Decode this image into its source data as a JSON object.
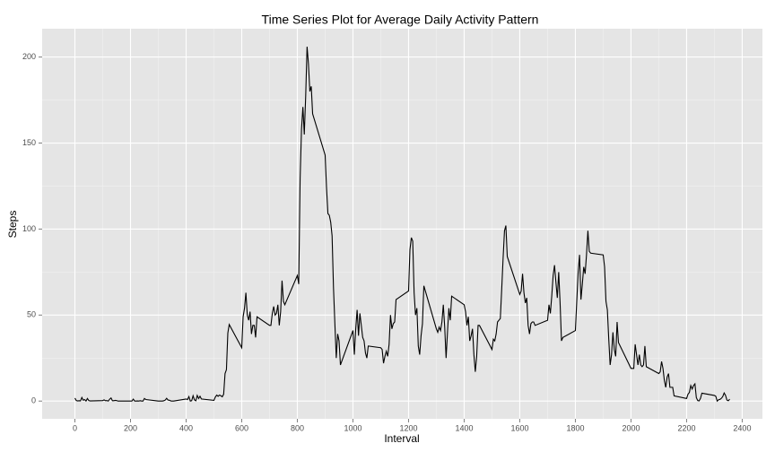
{
  "chart_data": {
    "type": "line",
    "title": "Time Series Plot for Average Daily Activity Pattern",
    "x_label": "Interval",
    "y_label": "Steps",
    "color": "#000000",
    "grid": true,
    "xlim": [
      -117.75,
      2472.75
    ],
    "ylim": [
      -10.31,
      216.48
    ],
    "xticks": [
      0,
      200,
      400,
      600,
      800,
      1000,
      1200,
      1400,
      1600,
      1800,
      2000,
      2200,
      2400
    ],
    "yticks": [
      0,
      50,
      100,
      150,
      200
    ],
    "x": [
      0,
      5,
      10,
      15,
      20,
      25,
      30,
      35,
      40,
      45,
      50,
      55,
      100,
      105,
      110,
      115,
      120,
      125,
      130,
      135,
      140,
      145,
      150,
      155,
      200,
      205,
      210,
      215,
      220,
      225,
      230,
      235,
      240,
      245,
      250,
      255,
      300,
      305,
      310,
      315,
      320,
      325,
      330,
      335,
      340,
      345,
      350,
      355,
      400,
      405,
      410,
      415,
      420,
      425,
      430,
      435,
      440,
      445,
      450,
      455,
      500,
      505,
      510,
      515,
      520,
      525,
      530,
      535,
      540,
      545,
      550,
      555,
      600,
      605,
      610,
      615,
      620,
      625,
      630,
      635,
      640,
      645,
      650,
      655,
      700,
      705,
      710,
      715,
      720,
      725,
      730,
      735,
      740,
      745,
      750,
      755,
      800,
      805,
      810,
      815,
      820,
      825,
      830,
      835,
      840,
      845,
      850,
      855,
      900,
      905,
      910,
      915,
      920,
      925,
      930,
      935,
      940,
      945,
      950,
      955,
      1000,
      1005,
      1010,
      1015,
      1020,
      1025,
      1030,
      1035,
      1040,
      1045,
      1050,
      1055,
      1100,
      1105,
      1110,
      1115,
      1120,
      1125,
      1130,
      1135,
      1140,
      1145,
      1150,
      1155,
      1200,
      1205,
      1210,
      1215,
      1220,
      1225,
      1230,
      1235,
      1240,
      1245,
      1250,
      1255,
      1300,
      1305,
      1310,
      1315,
      1320,
      1325,
      1330,
      1335,
      1340,
      1345,
      1350,
      1355,
      1400,
      1405,
      1410,
      1415,
      1420,
      1425,
      1430,
      1435,
      1440,
      1445,
      1450,
      1455,
      1500,
      1505,
      1510,
      1515,
      1520,
      1525,
      1530,
      1535,
      1540,
      1545,
      1550,
      1555,
      1600,
      1605,
      1610,
      1615,
      1620,
      1625,
      1630,
      1635,
      1640,
      1645,
      1650,
      1655,
      1700,
      1705,
      1710,
      1715,
      1720,
      1725,
      1730,
      1735,
      1740,
      1745,
      1750,
      1755,
      1800,
      1805,
      1810,
      1815,
      1820,
      1825,
      1830,
      1835,
      1840,
      1845,
      1850,
      1855,
      1900,
      1905,
      1910,
      1915,
      1920,
      1925,
      1930,
      1935,
      1940,
      1945,
      1950,
      1955,
      2000,
      2005,
      2010,
      2015,
      2020,
      2025,
      2030,
      2035,
      2040,
      2045,
      2050,
      2055,
      2100,
      2105,
      2110,
      2115,
      2120,
      2125,
      2130,
      2135,
      2140,
      2145,
      2150,
      2155,
      2200,
      2205,
      2210,
      2215,
      2220,
      2225,
      2230,
      2235,
      2240,
      2245,
      2250,
      2255,
      2300,
      2305,
      2310,
      2315,
      2320,
      2325,
      2330,
      2335,
      2340,
      2345,
      2350,
      2355
    ],
    "values": [
      1.7,
      0.3,
      0.1,
      0.2,
      0.1,
      2.1,
      0.5,
      0.9,
      0,
      1.5,
      0.3,
      0.1,
      0.3,
      0.7,
      0.2,
      0.3,
      0,
      1.1,
      1.8,
      0.2,
      0.2,
      0.4,
      0.3,
      0,
      0,
      0,
      1.1,
      0,
      0,
      0.1,
      0,
      0.2,
      0,
      0,
      1.5,
      0.9,
      0,
      0,
      0,
      0,
      0.2,
      0.6,
      1.6,
      0.6,
      0.5,
      0.1,
      0,
      0,
      1.2,
      0.9,
      2.6,
      0,
      0.2,
      3.1,
      0.7,
      0.2,
      3.3,
      1.5,
      2.8,
      1.2,
      0.4,
      2.3,
      3.5,
      2.8,
      3.5,
      3.1,
      2.5,
      4,
      16,
      18.3,
      39.5,
      44.5,
      31,
      49,
      54,
      63,
      50,
      47,
      52,
      39,
      44,
      44,
      37,
      49,
      44,
      44,
      51,
      55,
      50,
      51,
      56,
      44,
      52,
      70,
      58,
      56,
      73,
      68,
      129,
      158,
      171,
      155,
      177,
      206,
      196,
      180,
      183,
      167,
      143,
      124,
      109,
      108,
      104,
      96,
      66,
      45,
      25,
      39,
      35,
      21,
      41,
      27,
      42,
      53,
      38,
      51,
      44,
      37,
      35,
      28,
      25,
      32,
      31,
      30,
      22,
      26,
      29,
      26,
      33,
      50,
      42,
      45,
      46,
      59,
      64,
      88,
      95,
      93,
      63,
      50,
      54,
      32,
      27,
      38,
      45,
      67,
      42,
      40,
      43,
      41,
      46,
      56,
      43,
      25,
      40,
      54,
      47,
      61,
      56,
      52,
      44,
      49,
      35,
      38,
      42,
      27,
      17,
      26,
      44,
      44,
      30,
      36,
      35,
      39,
      46,
      47,
      48,
      65,
      83,
      99,
      102,
      84,
      62,
      64,
      74,
      63,
      57,
      60,
      44,
      39,
      45,
      46,
      46,
      44,
      47,
      56,
      51,
      61,
      73,
      79,
      69,
      60,
      75,
      57,
      35,
      37,
      41,
      58,
      75,
      85,
      59,
      68,
      78,
      74,
      85,
      99,
      87,
      86,
      85,
      78,
      58,
      53,
      36,
      21,
      27,
      40,
      30,
      26,
      46,
      34,
      19,
      19,
      19,
      33,
      27,
      21,
      27,
      21,
      20,
      21,
      32,
      20,
      16,
      17,
      23,
      19,
      12,
      8,
      14,
      16,
      8,
      8,
      8,
      3,
      1.5,
      4,
      5,
      9,
      7,
      9,
      10,
      2,
      0.3,
      0.1,
      1.6,
      4.6,
      3.3,
      2.8,
      0,
      0.8,
      1,
      1.6,
      2.6,
      4.7,
      3.3,
      0.6,
      0.2,
      1.1
    ]
  }
}
